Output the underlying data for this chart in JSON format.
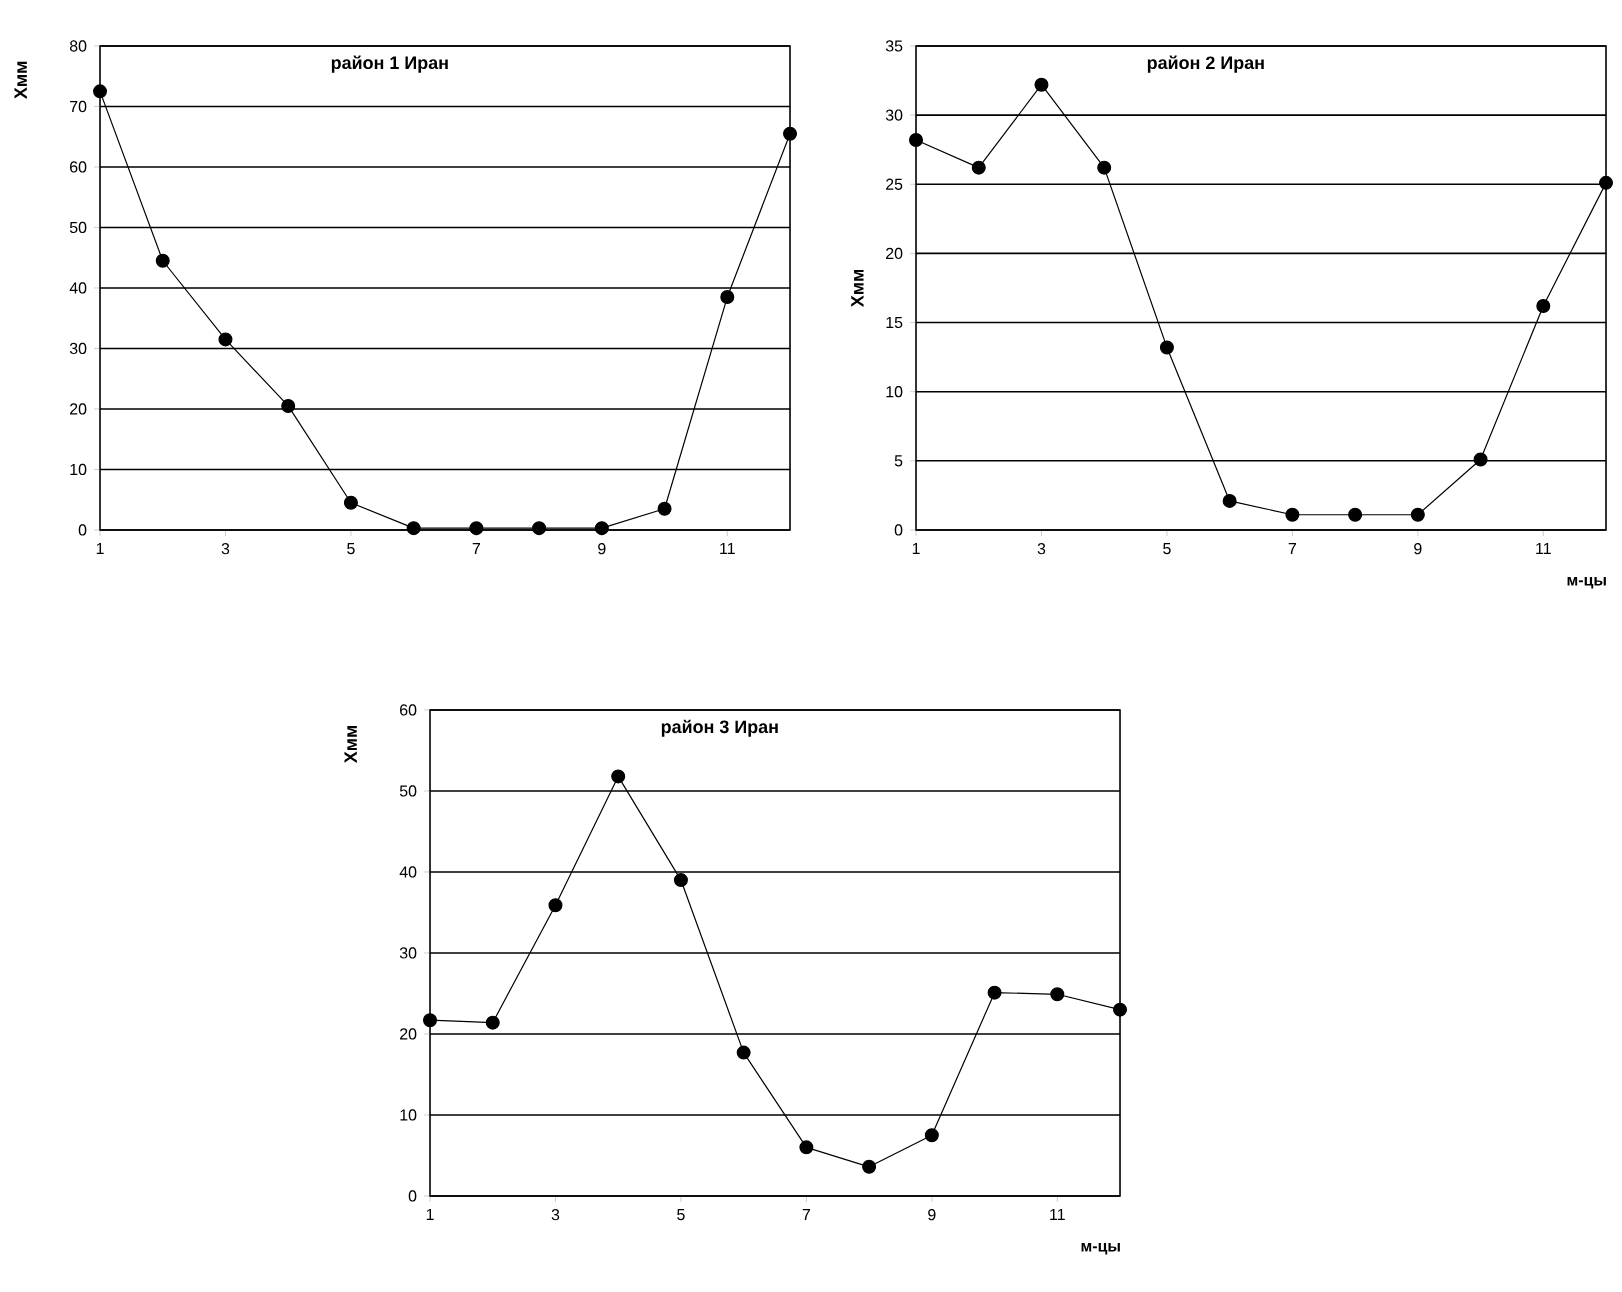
{
  "chart_data": [
    {
      "type": "line",
      "title": "**район 1 Иран**",
      "ylabel": "Хмм",
      "x": [
        1,
        2,
        3,
        4,
        5,
        6,
        7,
        8,
        9,
        10,
        11,
        12
      ],
      "series": [
        {
          "color": "#000000",
          "values": [
            72.5,
            44.5,
            31.5,
            20.5,
            4.5,
            0.3,
            0.3,
            0.3,
            0.3,
            3.5,
            38.5,
            65.5
          ]
        }
      ],
      "xlim": [
        1,
        12
      ],
      "xticks": [
        1,
        3,
        5,
        7,
        9,
        11
      ],
      "ylim": [
        0,
        80
      ],
      "yticks": [
        0,
        10,
        20,
        30,
        40,
        50,
        60,
        70,
        80
      ],
      "grid": "y",
      "marker": "circle",
      "line_style": "solid"
    },
    {
      "type": "line",
      "title": "**район 2 Иран**",
      "xlabel": "м-цы",
      "ylabel": "Хмм",
      "x": [
        1,
        2,
        3,
        4,
        5,
        6,
        7,
        8,
        9,
        10,
        11,
        12
      ],
      "series": [
        {
          "color": "#000000",
          "values": [
            28.2,
            26.2,
            32.2,
            26.2,
            13.2,
            2.1,
            1.1,
            1.1,
            1.1,
            5.1,
            16.2,
            25.1
          ]
        }
      ],
      "xlim": [
        1,
        12
      ],
      "xticks": [
        1,
        3,
        5,
        7,
        9,
        11
      ],
      "ylim": [
        0,
        35
      ],
      "yticks": [
        0,
        5,
        10,
        15,
        20,
        25,
        30,
        35
      ],
      "grid": "y",
      "marker": "circle",
      "line_style": "solid"
    },
    {
      "type": "line",
      "title": "**район 3  Иран**",
      "xlabel": "м-цы",
      "ylabel": "Хмм",
      "x": [
        1,
        2,
        3,
        4,
        5,
        6,
        7,
        8,
        9,
        10,
        11,
        12
      ],
      "series": [
        {
          "color": "#000000",
          "values": [
            21.7,
            21.4,
            35.9,
            51.8,
            39,
            17.7,
            6,
            3.6,
            7.5,
            25.1,
            24.9,
            23
          ]
        }
      ],
      "xlim": [
        1,
        12
      ],
      "xticks": [
        1,
        3,
        5,
        7,
        9,
        11
      ],
      "ylim": [
        0,
        60
      ],
      "yticks": [
        0,
        10,
        20,
        30,
        40,
        50,
        60
      ],
      "grid": "y",
      "marker": "circle",
      "line_style": "solid"
    }
  ]
}
